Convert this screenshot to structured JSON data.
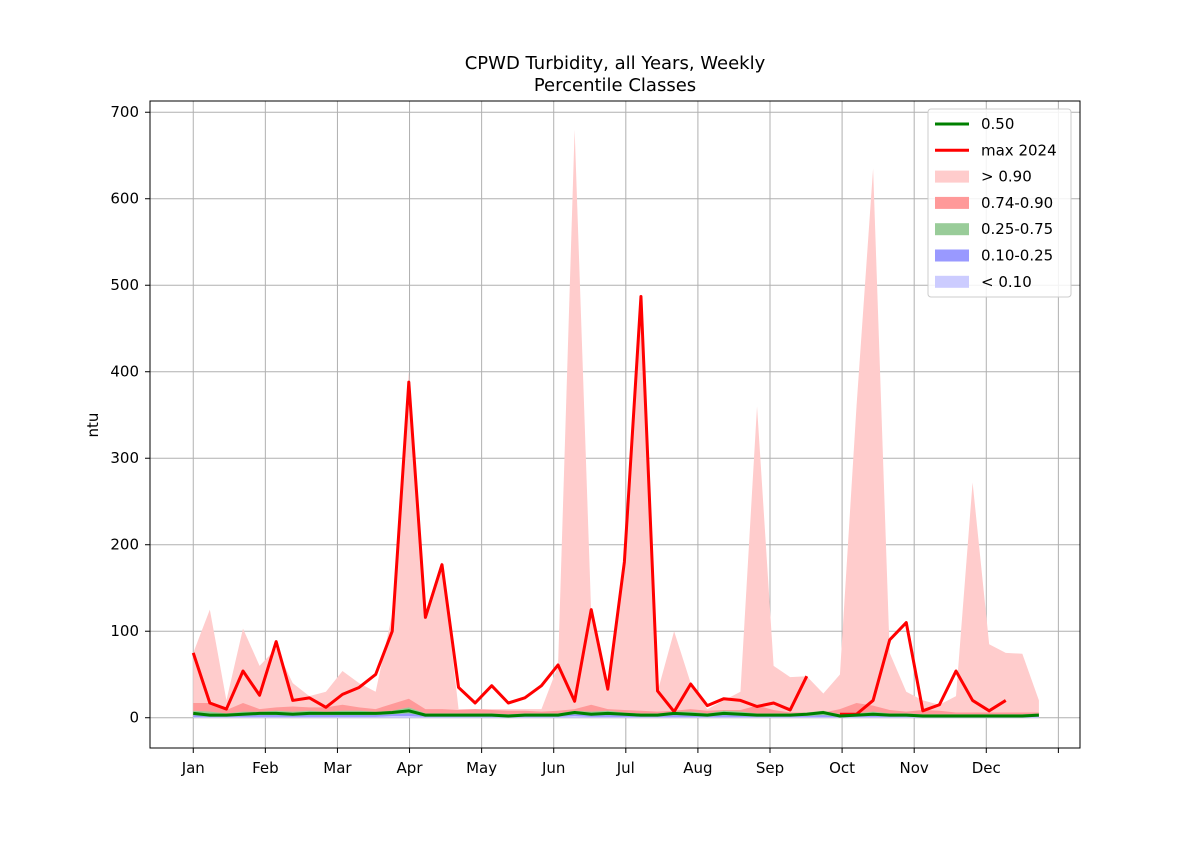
{
  "chart_data": {
    "type": "area",
    "title": "CPWD Turbidity, all Years, Weekly",
    "subtitle": "Percentile Classes",
    "xlabel": "",
    "ylabel": "ntu",
    "x_tick_labels": [
      "Jan",
      "Feb",
      "Mar",
      "Apr",
      "May",
      "Jun",
      "Jul",
      "Aug",
      "Sep",
      "Oct",
      "Nov",
      "Dec",
      ""
    ],
    "y_ticks": [
      0,
      100,
      200,
      300,
      400,
      500,
      600,
      700
    ],
    "xlim": [
      -6,
      123
    ],
    "ylim": [
      -35,
      713
    ],
    "grid": true,
    "legend_position": "top-right",
    "weeks": [
      0,
      2.3,
      4.6,
      6.9,
      9.2,
      11.5,
      13.8,
      16.1,
      18.4,
      20.7,
      23,
      25.3,
      27.6,
      29.9,
      32.2,
      34.5,
      36.8,
      39.1,
      41.4,
      43.7,
      46,
      48.3,
      50.6,
      52.9,
      55.2,
      57.5,
      59.8,
      62.1,
      64.4,
      66.7,
      69,
      71.3,
      73.6,
      75.9,
      78.2,
      80.5,
      82.8,
      85.1,
      87.4,
      89.7,
      92,
      94.3,
      96.6,
      98.9,
      101.2,
      103.5,
      105.8,
      108.1,
      110.4,
      112.7,
      115,
      117.3
    ],
    "series": [
      {
        "name": "0.50",
        "kind": "line",
        "color": "#008000",
        "values": [
          5,
          3,
          3,
          4,
          5,
          5,
          4,
          5,
          5,
          5,
          5,
          5,
          6,
          8,
          3,
          3,
          3,
          3,
          3,
          2,
          3,
          3,
          3,
          6,
          4,
          5,
          4,
          3,
          3,
          5,
          4,
          3,
          5,
          4,
          3,
          3,
          3,
          4,
          6,
          2,
          3,
          4,
          3,
          3,
          2,
          2,
          2,
          2,
          2,
          2,
          2,
          3
        ]
      },
      {
        "name": "max 2024",
        "kind": "line",
        "color": "#ff0000",
        "segments": [
          {
            "start_index": 0,
            "values": [
              75,
              17,
              10,
              54,
              26,
              88,
              20,
              23,
              12,
              27,
              35,
              50,
              100,
              388,
              116,
              177,
              35,
              17,
              37,
              17,
              23,
              37,
              61,
              19,
              125,
              33,
              180,
              487,
              31,
              7,
              39,
              14,
              22,
              20,
              13,
              17,
              9,
              48
            ]
          },
          {
            "start_index": 39,
            "values": [
              4,
              4,
              20,
              90,
              110,
              8,
              15,
              54,
              20,
              8,
              20
            ]
          }
        ]
      },
      {
        "name": "> 0.90",
        "kind": "band",
        "color": "#ffcccc",
        "values": [
          75,
          125,
          20,
          103,
          60,
          80,
          40,
          25,
          30,
          54,
          40,
          30,
          120,
          400,
          120,
          180,
          10,
          10,
          10,
          10,
          10,
          10,
          60,
          680,
          120,
          30,
          180,
          490,
          30,
          100,
          40,
          10,
          20,
          30,
          360,
          60,
          47,
          48,
          28,
          50,
          360,
          635,
          75,
          30,
          20,
          15,
          25,
          272,
          85,
          75,
          74,
          20
        ]
      },
      {
        "name": "0.74-0.90",
        "kind": "band",
        "color": "#ff9999",
        "values": [
          17,
          17,
          9,
          17,
          10,
          12,
          13,
          12,
          12,
          15,
          12,
          10,
          16,
          22,
          10,
          10,
          9,
          10,
          9,
          8,
          8,
          7,
          8,
          10,
          15,
          10,
          9,
          8,
          7,
          8,
          10,
          8,
          9,
          9,
          14,
          9,
          6,
          6,
          6,
          10,
          17,
          14,
          9,
          7,
          9,
          8,
          6,
          6,
          6,
          6,
          6,
          6
        ]
      },
      {
        "name": "0.25-0.75",
        "kind": "band",
        "color": "#99cc99",
        "values": [
          8,
          7,
          5,
          7,
          7,
          8,
          7,
          8,
          7,
          8,
          8,
          7,
          8,
          12,
          5,
          5,
          5,
          5,
          5,
          4,
          5,
          5,
          5,
          8,
          7,
          8,
          6,
          5,
          5,
          7,
          7,
          5,
          8,
          7,
          5,
          5,
          5,
          6,
          8,
          4,
          5,
          7,
          5,
          5,
          4,
          4,
          4,
          4,
          4,
          4,
          4,
          5
        ]
      },
      {
        "name": "0.10-0.25",
        "kind": "band",
        "color": "#9999ff",
        "values": [
          3,
          2,
          2,
          3,
          3,
          3,
          3,
          3,
          3,
          3,
          3,
          3,
          4,
          5,
          2,
          2,
          2,
          2,
          2,
          1,
          2,
          2,
          2,
          4,
          3,
          3,
          3,
          2,
          2,
          3,
          3,
          2,
          3,
          3,
          2,
          2,
          2,
          2,
          3,
          1,
          2,
          3,
          2,
          2,
          1,
          1,
          1,
          1,
          1,
          1,
          1,
          2
        ]
      },
      {
        "name": "< 0.10",
        "kind": "band",
        "color": "#ccccff",
        "values": [
          1,
          1,
          1,
          1,
          1,
          1,
          1,
          1,
          1,
          1,
          1,
          1,
          2,
          2,
          1,
          1,
          1,
          1,
          1,
          0.5,
          1,
          1,
          1,
          2,
          1,
          1,
          1,
          1,
          1,
          1,
          1,
          1,
          1,
          1,
          1,
          1,
          1,
          1,
          1,
          0.5,
          1,
          1,
          1,
          1,
          0.5,
          0.5,
          0.5,
          0.5,
          0.5,
          0.5,
          0.5,
          1
        ]
      }
    ]
  }
}
